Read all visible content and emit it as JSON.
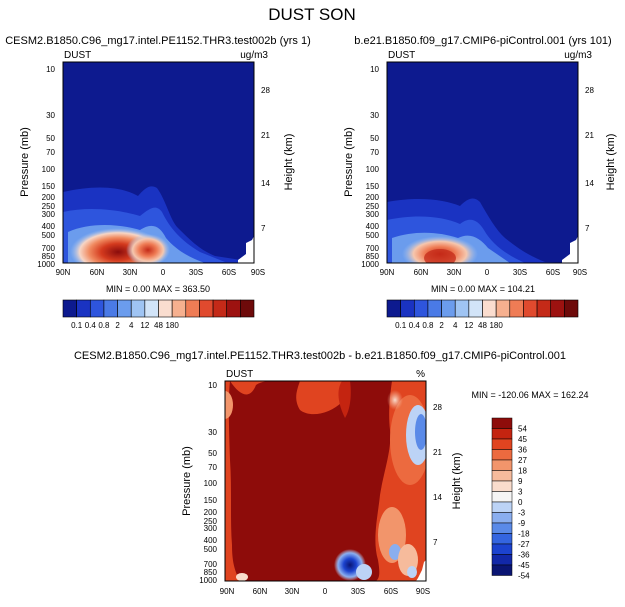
{
  "page_title": "DUST SON",
  "colors": {
    "abs_scale": [
      "#0d1a8f",
      "#1a33c2",
      "#2e55dd",
      "#4a7ae6",
      "#6b9ced",
      "#9fc4f3",
      "#d2e4f8",
      "#faddcf",
      "#f6b08f",
      "#ef7c55",
      "#e04a2e",
      "#c42a18",
      "#9d1210",
      "#6e0a0a"
    ],
    "diff_scale": [
      "#0a1573",
      "#1228a8",
      "#1c43cf",
      "#3465e0",
      "#5a8ae8",
      "#8aaeef",
      "#bcd3f6",
      "#f5f5f5",
      "#f9dccc",
      "#f6bb9c",
      "#f2956b",
      "#ec6a3f",
      "#e04420",
      "#c42410",
      "#8e0c0a"
    ]
  },
  "chart_data": [
    {
      "type": "heatmap",
      "id": "panel1",
      "title": "CESM2.B1850.C96_mg17.intel.PE1152.THR3.test002b (yrs 1)",
      "corner_left": "DUST",
      "corner_right": "ug/m3",
      "ylabel": "Pressure (mb)",
      "ylabel_right": "Height (km)",
      "x_ticks": [
        "90N",
        "60N",
        "30N",
        "0",
        "30S",
        "60S",
        "90S"
      ],
      "y_ticks": [
        "10",
        "30",
        "50",
        "70",
        "100",
        "150",
        "200",
        "250",
        "300",
        "400",
        "500",
        "700",
        "850",
        "1000"
      ],
      "height_ticks": [
        "28",
        "21",
        "14",
        "7"
      ],
      "stats": "MIN =   0.00  MAX = 363.50",
      "colorbar_labels": [
        "0.1",
        "0.4",
        "0.8",
        "2",
        "4",
        "12",
        "48",
        "180"
      ]
    },
    {
      "type": "heatmap",
      "id": "panel2",
      "title": "b.e21.B1850.f09_g17.CMIP6-piControl.001 (yrs 101)",
      "corner_left": "DUST",
      "corner_right": "ug/m3",
      "ylabel": "Pressure (mb)",
      "ylabel_right": "Height (km)",
      "x_ticks": [
        "90N",
        "60N",
        "30N",
        "0",
        "30S",
        "60S",
        "90S"
      ],
      "y_ticks": [
        "10",
        "30",
        "50",
        "70",
        "100",
        "150",
        "200",
        "250",
        "300",
        "400",
        "500",
        "700",
        "850",
        "1000"
      ],
      "height_ticks": [
        "28",
        "21",
        "14",
        "7"
      ],
      "stats": "MIN =   0.00  MAX = 104.21",
      "colorbar_labels": [
        "0.1",
        "0.4",
        "0.8",
        "2",
        "4",
        "12",
        "48",
        "180"
      ]
    },
    {
      "type": "heatmap",
      "id": "panel3",
      "title": "CESM2.B1850.C96_mg17.intel.PE1152.THR3.test002b - b.e21.B1850.f09_g17.CMIP6-piControl.001",
      "corner_left": "DUST",
      "corner_right": "%",
      "ylabel": "Pressure (mb)",
      "ylabel_right": "Height (km)",
      "x_ticks": [
        "90N",
        "60N",
        "30N",
        "0",
        "30S",
        "60S",
        "90S"
      ],
      "y_ticks": [
        "10",
        "30",
        "50",
        "70",
        "100",
        "150",
        "200",
        "250",
        "300",
        "400",
        "500",
        "700",
        "850",
        "1000"
      ],
      "height_ticks": [
        "28",
        "21",
        "14",
        "7"
      ],
      "stats": "MIN = -120.06  MAX = 162.24",
      "colorbar_labels": [
        "54",
        "45",
        "36",
        "27",
        "18",
        "9",
        "3",
        "0",
        "-3",
        "-9",
        "-18",
        "-27",
        "-36",
        "-45",
        "-54"
      ]
    }
  ]
}
